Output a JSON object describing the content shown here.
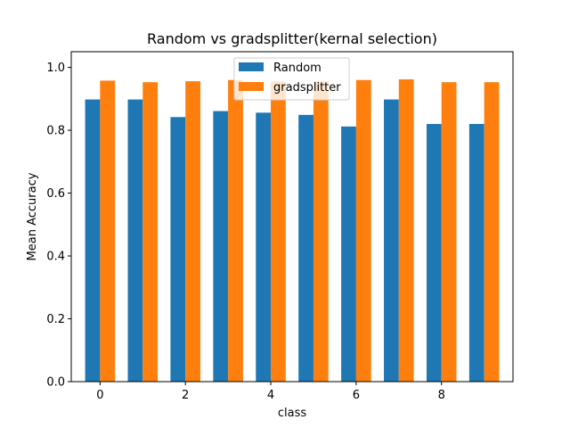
{
  "chart_data": {
    "type": "bar",
    "title": "Random vs gradsplitter(kernal selection)",
    "xlabel": "class",
    "ylabel": "Mean Accuracy",
    "x": [
      0,
      1,
      2,
      3,
      4,
      5,
      6,
      7,
      8,
      9
    ],
    "xticks": [
      "0",
      "2",
      "4",
      "6",
      "8"
    ],
    "yticks": [
      "0.0",
      "0.2",
      "0.4",
      "0.6",
      "0.8",
      "1.0"
    ],
    "ylim": [
      0,
      1.0
    ],
    "legend_position": "top-center",
    "series": [
      {
        "name": "Random",
        "color": "#1f77b4",
        "values": [
          0.898,
          0.898,
          0.842,
          0.861,
          0.856,
          0.849,
          0.812,
          0.898,
          0.82,
          0.82
        ]
      },
      {
        "name": "gradsplitter",
        "color": "#ff7f0e",
        "values": [
          0.958,
          0.953,
          0.956,
          0.96,
          0.955,
          0.956,
          0.96,
          0.962,
          0.953,
          0.953
        ]
      }
    ]
  }
}
